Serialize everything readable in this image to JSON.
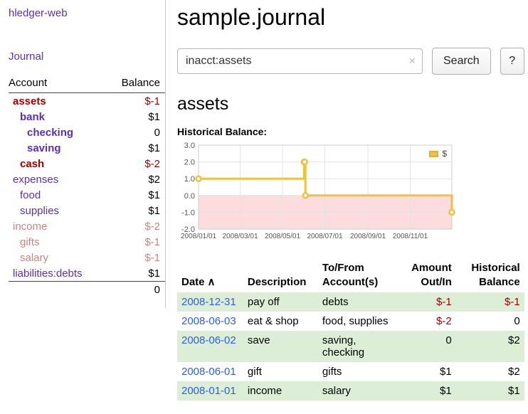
{
  "app": {
    "title": "hledger-web",
    "nav": {
      "journal": "Journal"
    }
  },
  "sidebar": {
    "account_header": "Account",
    "balance_header": "Balance",
    "accounts": [
      {
        "name": "assets",
        "balance": "$-1",
        "indent": 1,
        "negative": true,
        "bold": true,
        "muted": false
      },
      {
        "name": "bank",
        "balance": "$1",
        "indent": 2,
        "negative": false,
        "bold": true,
        "muted": false
      },
      {
        "name": "checking",
        "balance": "0",
        "indent": 3,
        "negative": false,
        "bold": true,
        "muted": false
      },
      {
        "name": "saving",
        "balance": "$1",
        "indent": 3,
        "negative": false,
        "bold": true,
        "muted": false
      },
      {
        "name": "cash",
        "balance": "$-2",
        "indent": 2,
        "negative": true,
        "bold": true,
        "muted": false
      },
      {
        "name": "expenses",
        "balance": "$2",
        "indent": 1,
        "negative": false,
        "bold": false,
        "muted": false
      },
      {
        "name": "food",
        "balance": "$1",
        "indent": 2,
        "negative": false,
        "bold": false,
        "muted": false
      },
      {
        "name": "supplies",
        "balance": "$1",
        "indent": 2,
        "negative": false,
        "bold": false,
        "muted": false
      },
      {
        "name": "income",
        "balance": "$-2",
        "indent": 1,
        "negative": true,
        "bold": false,
        "muted": true
      },
      {
        "name": "gifts",
        "balance": "$-1",
        "indent": 2,
        "negative": true,
        "bold": false,
        "muted": true
      },
      {
        "name": "salary",
        "balance": "$-1",
        "indent": 2,
        "negative": true,
        "bold": false,
        "muted": true
      },
      {
        "name": "liabilities:debts",
        "balance": "$1",
        "indent": 1,
        "negative": false,
        "bold": false,
        "muted": false
      }
    ],
    "total": "0"
  },
  "main": {
    "journal_title": "sample.journal",
    "account_heading": "assets",
    "chart_heading": "Historical Balance:"
  },
  "search": {
    "query": "inacct:assets",
    "clear_icon": "×",
    "search_button": "Search",
    "help_button": "?"
  },
  "chart_data": {
    "type": "line",
    "steps": true,
    "title": "Historical Balance",
    "series": [
      {
        "name": "$",
        "color": "#edc240",
        "points": [
          [
            "2008-01-01",
            1
          ],
          [
            "2008-06-01",
            2
          ],
          [
            "2008-06-02",
            2
          ],
          [
            "2008-06-03",
            0
          ],
          [
            "2008-12-31",
            -1
          ]
        ]
      }
    ],
    "ylim": [
      -2,
      3
    ],
    "yticks": [
      "3.0",
      "2.0",
      "1.0",
      "0.0",
      "-1.0",
      "-2.0"
    ],
    "xticks": [
      "2008/01/01",
      "2008/03/01",
      "2008/05/01",
      "2008/07/01",
      "2008/09/01",
      "2008/11/01"
    ],
    "negative_region_color": "#fcdcdc",
    "legend": "$",
    "legend_position": "top-right",
    "grid": true
  },
  "register": {
    "headers": {
      "date": "Date",
      "description": "Description",
      "tofrom": "To/From Account(s)",
      "amount": "Amount Out/In",
      "balance": "Historical Balance"
    },
    "sort_icon": "∧",
    "rows": [
      {
        "date": "2008-12-31",
        "description": "pay off",
        "accounts": "debts",
        "amount": "$-1",
        "balance": "$-1",
        "shaded": true
      },
      {
        "date": "2008-06-03",
        "description": "eat & shop",
        "accounts": "food, supplies",
        "amount": "$-2",
        "balance": "0",
        "shaded": false
      },
      {
        "date": "2008-06-02",
        "description": "save",
        "accounts": "saving,\nchecking",
        "amount": "0",
        "balance": "$2",
        "shaded": true
      },
      {
        "date": "2008-06-01",
        "description": "gift",
        "accounts": "gifts",
        "amount": "$1",
        "balance": "$2",
        "shaded": false
      },
      {
        "date": "2008-01-01",
        "description": "income",
        "accounts": "salary",
        "amount": "$1",
        "balance": "$1",
        "shaded": true
      }
    ]
  },
  "colors": {
    "link_purple": "#5b2fb0",
    "date_link_blue": "#2e5fe0",
    "negative_red": "#a40000",
    "row_stripe_green": "#dcefd6",
    "chart_line_gold": "#edc240",
    "chart_negative_region_pink": "#fcdcdc"
  }
}
